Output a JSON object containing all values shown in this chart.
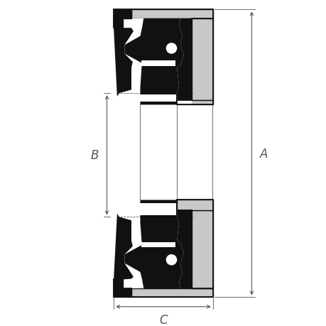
{
  "bg": "#ffffff",
  "black": "#111111",
  "gray": "#c8c8c8",
  "dim_color": "#555555",
  "fig_w": 4.6,
  "fig_h": 4.6,
  "dpi": 100,
  "label_A": "A",
  "label_B": "B",
  "label_C": "C"
}
